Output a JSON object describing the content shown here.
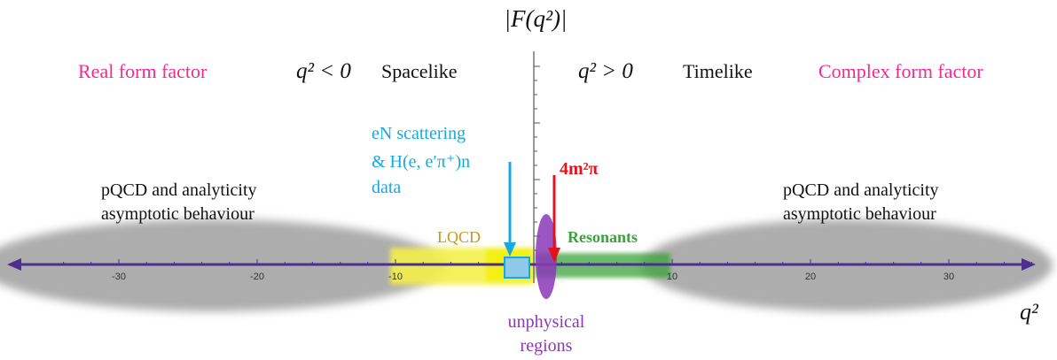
{
  "title": "|F(q²)|",
  "real_label": "Real form factor",
  "complex_label": "Complex form factor",
  "spacelike": {
    "math": "q² < 0",
    "word": "Spacelike"
  },
  "timelike": {
    "math": "q² > 0",
    "word": "Timelike"
  },
  "left_region": {
    "line1": "pQCD and analyticity",
    "line2": "asymptotic behaviour"
  },
  "right_region": {
    "line1": "pQCD and analyticity",
    "line2": "asymptotic behaviour"
  },
  "scattering": {
    "line1": "eN scattering",
    "line2": "& H(e, e′π⁺)n",
    "line3": "data"
  },
  "threshold_label": "4m²π",
  "lqcd_label": "LQCD",
  "resonants_label": "Resonants",
  "unphysical": {
    "line1": "unphysical",
    "line2": "regions"
  },
  "axis_var": "q²",
  "axis": {
    "min": -35,
    "max": 36,
    "ticks": [
      -30,
      -20,
      -10,
      10,
      20,
      30
    ],
    "tick_labels": [
      "-30",
      "-20",
      "-10",
      "10",
      "20",
      "30"
    ]
  },
  "colors": {
    "magenta": "#ee2c8e",
    "cyan": "#16a9e1",
    "red": "#e3111b",
    "gold": "#c49a1c",
    "green": "#3aa33a",
    "purple": "#8b38b8",
    "axis": "#4b2f8f",
    "yellow": "#f4f04a",
    "grey": "#7f7f7f"
  }
}
